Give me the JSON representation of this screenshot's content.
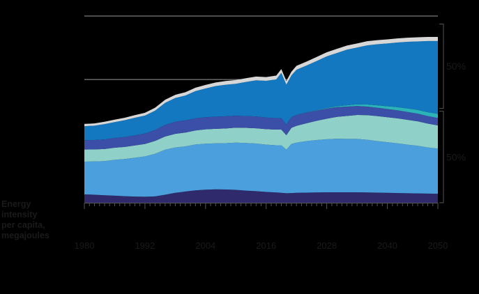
{
  "chart_data": {
    "type": "area",
    "stacked": true,
    "title": "",
    "ylabel_lines": [
      "Energy",
      "intensity",
      "per capita,",
      "megajoules"
    ],
    "x": [
      1980,
      1982,
      1984,
      1986,
      1988,
      1990,
      1992,
      1994,
      1996,
      1998,
      2000,
      2002,
      2004,
      2006,
      2008,
      2010,
      2012,
      2014,
      2016,
      2018,
      2019,
      2020,
      2021,
      2022,
      2024,
      2026,
      2028,
      2030,
      2032,
      2034,
      2036,
      2038,
      2040,
      2042,
      2044,
      2046,
      2048,
      2050
    ],
    "xlim": [
      1980,
      2050
    ],
    "xticks": [
      {
        "value": 1980,
        "label": "1980"
      },
      {
        "value": 1992,
        "label": "1992"
      },
      {
        "value": 2004,
        "label": "2004"
      },
      {
        "value": 2016,
        "label": "2016"
      },
      {
        "value": 2028,
        "label": "2028"
      },
      {
        "value": 2040,
        "label": "2040"
      },
      {
        "value": 2050,
        "label": "2050"
      }
    ],
    "ylim": [
      0,
      100
    ],
    "gridlines": [
      66,
      100
    ],
    "series": [
      {
        "color": "#2e2a6b",
        "values": [
          4.5,
          4.3,
          4.0,
          3.8,
          3.5,
          3.3,
          3.2,
          3.4,
          4.3,
          5.3,
          6.0,
          6.6,
          7.0,
          7.2,
          7.1,
          6.9,
          6.5,
          6.2,
          5.8,
          5.5,
          5.3,
          5.1,
          5.2,
          5.3,
          5.4,
          5.5,
          5.6,
          5.6,
          5.6,
          5.6,
          5.5,
          5.4,
          5.3,
          5.2,
          5.1,
          5.0,
          4.9,
          4.8
        ]
      },
      {
        "color": "#4a9fdc",
        "values": [
          17.5,
          17.8,
          18.3,
          19.2,
          19.9,
          20.8,
          21.6,
          22.8,
          24.1,
          24.3,
          24.2,
          24.6,
          24.6,
          24.6,
          24.8,
          25.3,
          25.5,
          25.5,
          25.3,
          25.3,
          25.5,
          23.3,
          26.3,
          26.9,
          27.6,
          28.1,
          28.4,
          28.7,
          28.6,
          28.6,
          28.2,
          27.6,
          27.1,
          26.6,
          26.0,
          25.5,
          24.7,
          24.2
        ]
      },
      {
        "color": "#8fd0c8",
        "values": [
          6.5,
          6.5,
          6.5,
          6.5,
          6.5,
          6.6,
          6.7,
          6.9,
          7.1,
          7.3,
          7.4,
          7.5,
          7.7,
          7.8,
          7.9,
          8.0,
          8.1,
          8.2,
          8.3,
          8.4,
          8.4,
          7.8,
          8.6,
          9.0,
          9.6,
          10.3,
          11.0,
          11.7,
          12.3,
          12.8,
          13.2,
          13.4,
          13.4,
          13.4,
          13.3,
          13.1,
          12.8,
          12.4
        ]
      },
      {
        "color": "#3b4ea8",
        "values": [
          5.0,
          5.0,
          5.1,
          5.2,
          5.3,
          5.4,
          5.6,
          5.9,
          6.2,
          6.5,
          6.5,
          6.5,
          6.5,
          6.5,
          6.5,
          6.4,
          6.3,
          6.3,
          6.2,
          6.1,
          6.1,
          5.7,
          5.8,
          5.8,
          5.7,
          5.5,
          5.4,
          5.2,
          5.0,
          4.8,
          4.6,
          4.5,
          4.4,
          4.3,
          4.2,
          4.1,
          4.0,
          4.0
        ]
      },
      {
        "color": "#2bb3b8",
        "values": [
          0,
          0,
          0,
          0,
          0,
          0,
          0,
          0,
          0,
          0,
          0,
          0,
          0,
          0,
          0,
          0,
          0,
          0,
          0,
          0,
          0,
          0,
          0,
          0,
          0.1,
          0.2,
          0.3,
          0.5,
          0.7,
          0.9,
          1.1,
          1.3,
          1.5,
          1.7,
          1.9,
          2.0,
          2.1,
          2.2
        ]
      },
      {
        "color": "#1478c0",
        "values": [
          7.5,
          7.7,
          8.2,
          8.5,
          9.0,
          9.4,
          9.6,
          10.3,
          11.8,
          12.7,
          13.3,
          14.6,
          15.4,
          16.4,
          16.9,
          17.1,
          18.3,
          19.4,
          19.7,
          20.8,
          24.3,
          21.4,
          22.3,
          24.2,
          25.1,
          26.3,
          27.7,
          28.5,
          29.8,
          30.4,
          31.7,
          32.7,
          33.6,
          34.6,
          35.7,
          36.7,
          38.1,
          39.0
        ]
      },
      {
        "color": "#d7d7d7",
        "values": [
          1.2,
          1.2,
          1.3,
          1.3,
          1.3,
          1.4,
          1.5,
          1.6,
          1.7,
          1.7,
          1.8,
          1.8,
          1.9,
          1.9,
          2.0,
          2.0,
          2.0,
          2.0,
          2.0,
          2.0,
          2.0,
          1.9,
          2.0,
          2.1,
          2.1,
          2.2,
          2.2,
          2.2,
          2.2,
          2.2,
          2.2,
          2.2,
          2.2,
          2.2,
          2.2,
          2.2,
          2.2,
          2.2
        ]
      }
    ],
    "brackets": [
      {
        "from": 50.5,
        "to": 95.7,
        "label": "50%"
      },
      {
        "from": 0,
        "to": 49.0,
        "label": "50%"
      }
    ]
  }
}
